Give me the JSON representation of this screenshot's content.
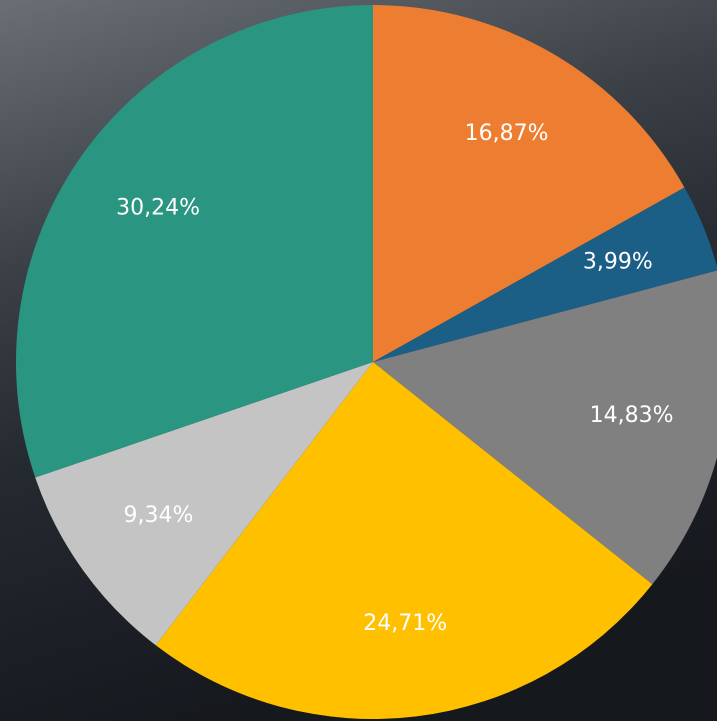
{
  "chart_data": {
    "type": "pie",
    "categories": [
      null,
      null,
      null,
      null,
      null,
      null
    ],
    "values": [
      16.87,
      3.99,
      14.83,
      24.71,
      9.34,
      30.24
    ],
    "value_labels": [
      "16,87%",
      "3,99%",
      "14,83%",
      "24,71%",
      "9,34%",
      "30,24%"
    ],
    "colors": [
      "#ED7D31",
      "#1B5E86",
      "#808080",
      "#FFC000",
      "#C4C4C4",
      "#2A9580"
    ]
  }
}
